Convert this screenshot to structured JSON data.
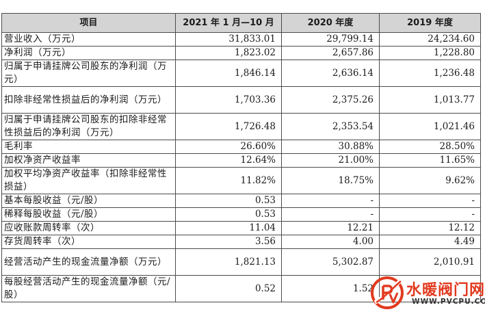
{
  "header": {
    "item": "项目",
    "col1": "2021 年 1 月—10 月",
    "col2": "2020 年度",
    "col3": "2019 年度"
  },
  "rows": [
    {
      "item": "营业收入（万元）",
      "v1": "31,833.01",
      "v2": "29,799.14",
      "v3": "24,234.60"
    },
    {
      "item": "净利润（万元）",
      "v1": "1,823.02",
      "v2": "2,657.86",
      "v3": "1,228.80"
    },
    {
      "item": "归属于申请挂牌公司股东的净利润（万元）",
      "v1": "1,846.14",
      "v2": "2,636.14",
      "v3": "1,236.48"
    },
    {
      "item": "扣除非经常性损益后的净利润（万元）",
      "v1": "1,703.36",
      "v2": "2,375.26",
      "v3": "1,013.77"
    },
    {
      "item": "归属于申请挂牌公司股东的扣除非经常性损益后的净利润（万元）",
      "v1": "1,726.48",
      "v2": "2,353.54",
      "v3": "1,021.46"
    },
    {
      "item": "毛利率",
      "v1": "26.60%",
      "v2": "30.88%",
      "v3": "28.50%"
    },
    {
      "item": "加权净资产收益率",
      "v1": "12.64%",
      "v2": "21.00%",
      "v3": "11.65%"
    },
    {
      "item": "加权平均净资产收益率（扣除非经常性损益）",
      "v1": "11.82%",
      "v2": "18.75%",
      "v3": "9.62%"
    },
    {
      "item": "基本每股收益（元/股）",
      "v1": "0.53",
      "v2": "-",
      "v3": "-"
    },
    {
      "item": "稀释每股收益（元/股）",
      "v1": "0.53",
      "v2": "-",
      "v3": "-"
    },
    {
      "item": "应收账款周转率（次）",
      "v1": "11.04",
      "v2": "12.21",
      "v3": "12.12"
    },
    {
      "item": "存货周转率（次）",
      "v1": "3.56",
      "v2": "4.00",
      "v3": "4.49"
    },
    {
      "item": "经营活动产生的现金流量净额（万元）",
      "v1": "1,821.13",
      "v2": "5,302.87",
      "v3": "2,010.91"
    },
    {
      "item": "每股经营活动产生的现金流量净额（元/股）",
      "v1": "0.52",
      "v2": "1.52",
      "v3": ""
    }
  ],
  "watermark": {
    "name": "水暖阀门网",
    "url": "WWW.PVCPU.COM",
    "colors": {
      "brand_red": "#e23a1f",
      "brand_dark": "#333333"
    }
  }
}
